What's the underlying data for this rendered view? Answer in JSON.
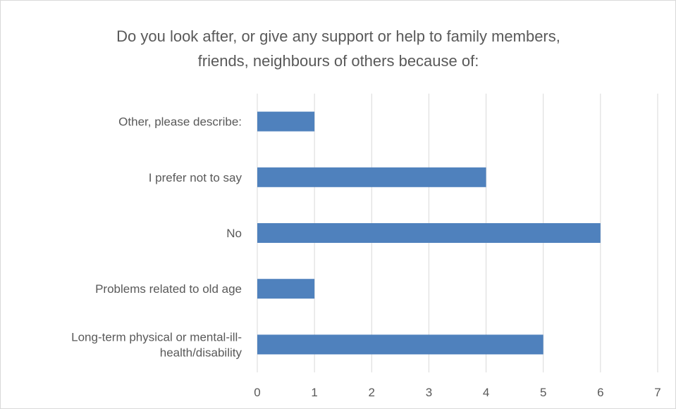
{
  "chart_data": {
    "type": "bar",
    "orientation": "horizontal",
    "title_lines": [
      "Do you look after, or give any support or help to family members,",
      "friends, neighbours of others because of:"
    ],
    "categories": [
      [
        "Other, please describe:"
      ],
      [
        "I prefer not to say"
      ],
      [
        "No"
      ],
      [
        "Problems related to old age"
      ],
      [
        "Long-term physical or mental-ill-",
        "health/disability"
      ]
    ],
    "values": [
      1,
      4,
      6,
      1,
      5
    ],
    "xlim": [
      0,
      7
    ],
    "ticks": [
      "0",
      "1",
      "2",
      "3",
      "4",
      "5",
      "6",
      "7"
    ],
    "grid": true,
    "legend": false,
    "bar_color": "#4f81bd"
  }
}
